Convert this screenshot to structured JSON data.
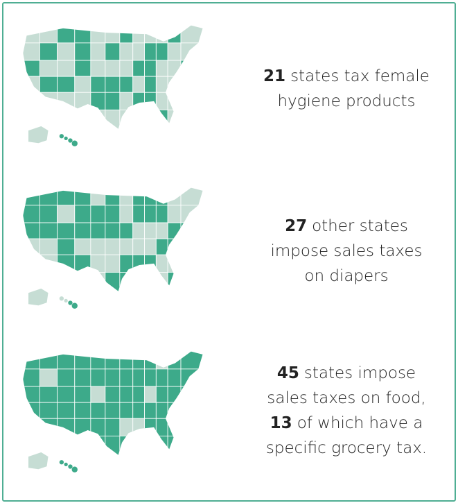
{
  "panels": [
    {
      "lines": [
        {
          "bold": "21",
          "text": "states tax female"
        },
        {
          "text": "hygiene products"
        }
      ]
    },
    {
      "lines": [
        {
          "bold": "27",
          "text": "other states"
        },
        {
          "text": "impose sales taxes"
        },
        {
          "text": "on diapers"
        }
      ]
    },
    {
      "lines": [
        {
          "bold": "45",
          "text": "states impose"
        },
        {
          "text": "sales taxes on food,"
        },
        {
          "bold": "13",
          "text": "of which have a"
        },
        {
          "text": "specific grocery tax."
        }
      ]
    }
  ]
}
